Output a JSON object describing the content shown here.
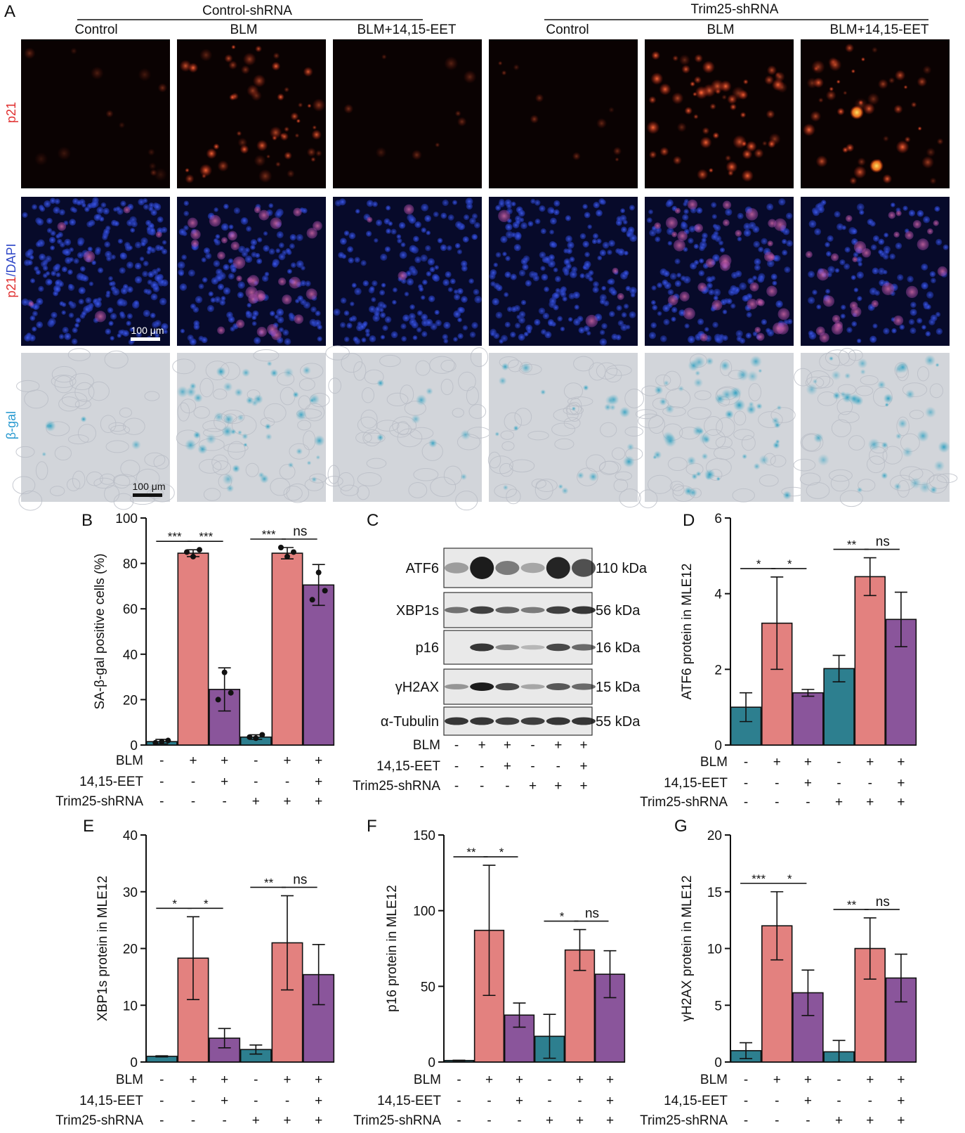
{
  "panel_letters": {
    "a": "A",
    "b": "B",
    "c": "C",
    "d": "D",
    "e": "E",
    "f": "F",
    "g": "G"
  },
  "micro": {
    "group_labels": [
      "Control-shRNA",
      "Trim25-shRNA"
    ],
    "column_labels": [
      "Control",
      "BLM",
      "BLM+14,15-EET",
      "Control",
      "BLM",
      "BLM+14,15-EET"
    ],
    "row_labels": [
      {
        "parts": [
          {
            "text": "p21",
            "color": "#e03030"
          }
        ]
      },
      {
        "parts": [
          {
            "text": "p21",
            "color": "#e03030"
          },
          {
            "text": "/DAPI",
            "color": "#3048c8"
          }
        ]
      },
      {
        "parts": [
          {
            "text": "β-gal",
            "color": "#2a9ad0"
          }
        ]
      }
    ],
    "scale_bar_label": "100 μm"
  },
  "colors": {
    "control": "#2d7f8f",
    "blm": "#e3817f",
    "eet": "#8a559b"
  },
  "treatment_rows": [
    {
      "label": "BLM",
      "signs": [
        "-",
        "+",
        "+",
        "-",
        "+",
        "+"
      ]
    },
    {
      "label": "14,15-EET",
      "signs": [
        "-",
        "-",
        "+",
        "-",
        "-",
        "+"
      ]
    },
    {
      "label": "Trim25-shRNA",
      "signs": [
        "-",
        "-",
        "-",
        "+",
        "+",
        "+"
      ]
    }
  ],
  "western": {
    "rows": [
      {
        "protein": "ATF6",
        "size": "110 kDa",
        "bands": [
          0.25,
          1.0,
          0.45,
          0.2,
          0.95,
          0.7
        ]
      },
      {
        "protein": "XBP1s",
        "size": "56 kDa",
        "bands": [
          0.5,
          0.8,
          0.6,
          0.45,
          0.8,
          0.85
        ]
      },
      {
        "protein": "p16",
        "size": "16 kDa",
        "bands": [
          0.0,
          0.85,
          0.35,
          0.1,
          0.75,
          0.55
        ]
      },
      {
        "protein": "γH2AX",
        "size": "15 kDa",
        "bands": [
          0.3,
          1.0,
          0.75,
          0.2,
          0.65,
          0.55
        ]
      },
      {
        "protein": "α-Tubulin",
        "size": "55 kDa",
        "bands": [
          0.85,
          0.85,
          0.8,
          0.8,
          0.85,
          0.85
        ]
      }
    ],
    "treatment_rows": [
      {
        "label": "BLM",
        "signs": [
          "-",
          "+",
          "+",
          "-",
          "+",
          "+"
        ]
      },
      {
        "label": "14,15-EET",
        "signs": [
          "-",
          "-",
          "+",
          "-",
          "-",
          "+"
        ]
      },
      {
        "label": "Trim25-shRNA",
        "signs": [
          "-",
          "-",
          "-",
          "+",
          "+",
          "+"
        ]
      }
    ]
  },
  "chart_data": [
    {
      "id": "B",
      "type": "bar",
      "ylabel": "SA-β-gal positive cells (%)",
      "ylim": [
        0,
        100
      ],
      "ticks": [
        0,
        20,
        40,
        60,
        80,
        100
      ],
      "values": [
        1.5,
        84.5,
        24.5,
        3.5,
        84.5,
        70.5
      ],
      "errors": [
        1.0,
        1.5,
        9.5,
        1.0,
        2.5,
        9.0
      ],
      "points": [
        [
          1,
          2,
          1.5
        ],
        [
          85,
          86,
          83
        ],
        [
          20,
          23,
          32
        ],
        [
          3.5,
          4.5,
          3
        ],
        [
          87,
          85,
          83
        ],
        [
          64,
          68,
          76
        ]
      ],
      "significance": [
        {
          "from": 0,
          "to": 1,
          "text": "***"
        },
        {
          "from": 1,
          "to": 2,
          "text": "***"
        },
        {
          "from": 3,
          "to": 4,
          "text": "***"
        },
        {
          "from": 4,
          "to": 5,
          "text": "ns"
        }
      ]
    },
    {
      "id": "D",
      "type": "bar",
      "ylabel": "ATF6 protein in MLE12",
      "ylim": [
        0,
        6
      ],
      "ticks": [
        0,
        2,
        4,
        6
      ],
      "values": [
        1.0,
        3.22,
        1.38,
        2.02,
        4.45,
        3.32
      ],
      "errors": [
        0.38,
        1.22,
        0.09,
        0.35,
        0.5,
        0.72
      ],
      "significance": [
        {
          "from": 0,
          "to": 1,
          "text": "*"
        },
        {
          "from": 1,
          "to": 2,
          "text": "*"
        },
        {
          "from": 3,
          "to": 4,
          "text": "**"
        },
        {
          "from": 4,
          "to": 5,
          "text": "ns"
        }
      ]
    },
    {
      "id": "E",
      "type": "bar",
      "ylabel": "XBP1s protein in MLE12",
      "ylim": [
        0,
        40
      ],
      "ticks": [
        0,
        10,
        20,
        30,
        40
      ],
      "values": [
        1.0,
        18.3,
        4.2,
        2.2,
        21.0,
        15.4
      ],
      "errors": [
        0.1,
        7.3,
        1.7,
        0.8,
        8.3,
        5.3
      ],
      "significance": [
        {
          "from": 0,
          "to": 1,
          "text": "*"
        },
        {
          "from": 1,
          "to": 2,
          "text": "*"
        },
        {
          "from": 3,
          "to": 4,
          "text": "**"
        },
        {
          "from": 4,
          "to": 5,
          "text": "ns"
        }
      ]
    },
    {
      "id": "F",
      "type": "bar",
      "ylabel": "p16 protein in MLE12",
      "ylim": [
        0,
        150
      ],
      "ticks": [
        0,
        50,
        100,
        150
      ],
      "values": [
        1.0,
        87.0,
        31.0,
        17.0,
        74.0,
        58.0
      ],
      "errors": [
        0.2,
        43.0,
        8.0,
        14.5,
        13.5,
        15.5
      ],
      "significance": [
        {
          "from": 0,
          "to": 1,
          "text": "**"
        },
        {
          "from": 1,
          "to": 2,
          "text": "*"
        },
        {
          "from": 3,
          "to": 4,
          "text": "*"
        },
        {
          "from": 4,
          "to": 5,
          "text": "ns"
        }
      ]
    },
    {
      "id": "G",
      "type": "bar",
      "ylabel": "γH2AX protein in MLE12",
      "ylim": [
        0,
        20
      ],
      "ticks": [
        0,
        5,
        10,
        15,
        20
      ],
      "values": [
        1.0,
        12.0,
        6.1,
        0.9,
        10.0,
        7.4
      ],
      "errors": [
        0.7,
        3.0,
        2.0,
        1.0,
        2.7,
        2.1
      ],
      "significance": [
        {
          "from": 0,
          "to": 1,
          "text": "***"
        },
        {
          "from": 1,
          "to": 2,
          "text": "*"
        },
        {
          "from": 3,
          "to": 4,
          "text": "**"
        },
        {
          "from": 4,
          "to": 5,
          "text": "ns"
        }
      ]
    }
  ]
}
